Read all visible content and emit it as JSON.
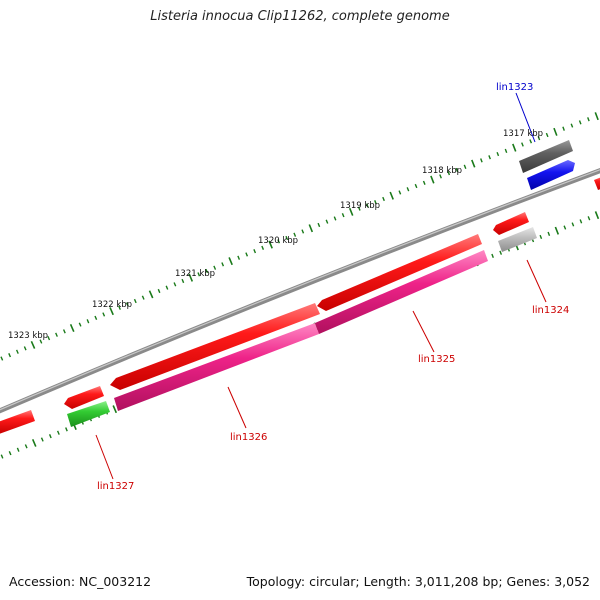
{
  "title": "Listeria innocua Clip11262, complete genome",
  "footer": {
    "accession": "Accession: NC_003212",
    "summary": "Topology: circular; Length: 3,011,208 bp; Genes: 3,052"
  },
  "colors": {
    "backbone": "#7a7a7a",
    "forward_cds": "#ee1111",
    "reverse_cds": "#ee2288",
    "blue_gene": "#1414e6",
    "dark_gray_gene": "#606060",
    "light_gray_gene": "#bdbdbd",
    "green_gene": "#33cc33",
    "tick": "#1a7a1a",
    "red_label": "#cc0000",
    "blue_label": "#0000cc"
  },
  "scale_labels": [
    "1317 kbp",
    "1318 kbp",
    "1319 kbp",
    "1320 kbp",
    "1321 kbp",
    "1322 kbp",
    "1323 kbp"
  ],
  "gene_labels": [
    {
      "name": "lin1323",
      "color": "blue"
    },
    {
      "name": "lin1324",
      "color": "red"
    },
    {
      "name": "lin1325",
      "color": "red"
    },
    {
      "name": "lin1326",
      "color": "red"
    },
    {
      "name": "lin1327",
      "color": "red"
    }
  ]
}
